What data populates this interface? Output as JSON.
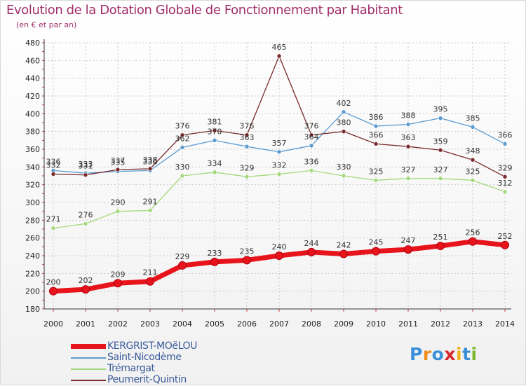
{
  "page": {
    "title": "Evolution de la Dotation Globale de Fonctionnement par Habitant",
    "subtitle": "(en € et par an)"
  },
  "logo": {
    "text": "Proxiti",
    "colors": [
      "#3b8fd8",
      "#f28c1e",
      "#3b8fd8",
      "#d8282b",
      "#f2b21e",
      "#3b8fd8",
      "#7ab62e"
    ]
  },
  "chart_data": {
    "type": "line",
    "title": "Evolution de la Dotation Globale de Fonctionnement par Habitant",
    "subtitle": "(en € et par an)",
    "x": [
      2000,
      2001,
      2002,
      2003,
      2004,
      2005,
      2006,
      2007,
      2008,
      2009,
      2010,
      2011,
      2012,
      2013,
      2014
    ],
    "ylim": [
      180,
      480
    ],
    "yticks": [
      180,
      200,
      220,
      240,
      260,
      280,
      300,
      320,
      340,
      360,
      380,
      400,
      420,
      440,
      460,
      480
    ],
    "grid": true,
    "legend_position": "bottom-left",
    "series": [
      {
        "name": "KERGRIST-MOëLOU",
        "color": "#e8141c",
        "values": [
          200,
          202,
          209,
          211,
          229,
          233,
          235,
          240,
          244,
          242,
          245,
          247,
          251,
          256,
          252
        ]
      },
      {
        "name": "Saint-Nicodème",
        "color": "#5b9bd0",
        "values": [
          336,
          333,
          335,
          336,
          362,
          370,
          363,
          357,
          364,
          402,
          386,
          388,
          395,
          385,
          366
        ]
      },
      {
        "name": "Trémargat",
        "color": "#a3d97a",
        "values": [
          271,
          276,
          290,
          291,
          330,
          334,
          329,
          332,
          336,
          330,
          325,
          327,
          327,
          325,
          312
        ]
      },
      {
        "name": "Peumerit-Quintin",
        "color": "#7a2a2a",
        "values": [
          332,
          331,
          337,
          338,
          376,
          381,
          376,
          465,
          376,
          380,
          366,
          363,
          359,
          348,
          329
        ]
      }
    ]
  }
}
